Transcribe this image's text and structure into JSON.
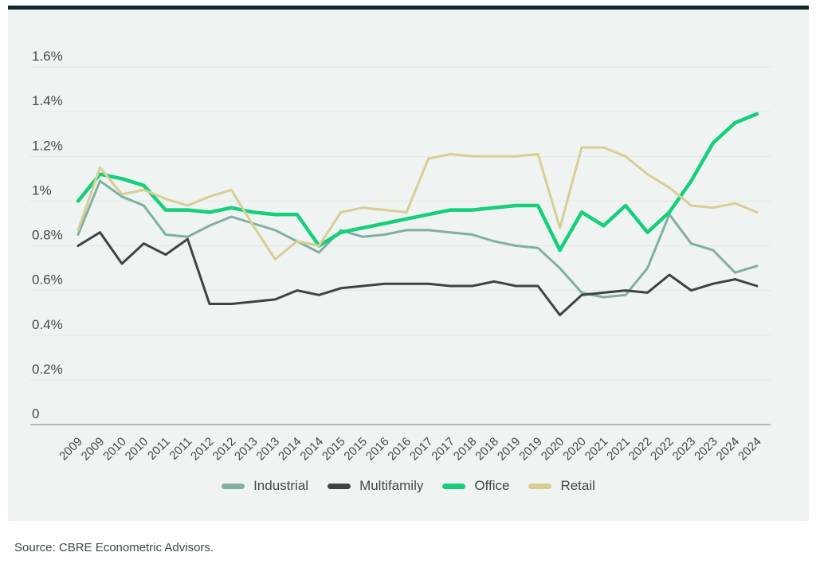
{
  "page": {
    "background": "#ffffff"
  },
  "card": {
    "background": "#eff3f1",
    "top_bar_color": "#0d2b2a"
  },
  "source_note": "Source: CBRE Econometric Advisors.",
  "chart_data": {
    "type": "line",
    "title": "",
    "xlabel": "",
    "ylabel": "",
    "ylim": [
      0,
      1.7
    ],
    "grid": true,
    "legend_position": "bottom",
    "axis_color": "#8e9a97",
    "grid_color": "#e2e8e4",
    "label_color": "#3f4c4e",
    "x": [
      "2009",
      "2009",
      "2010",
      "2010",
      "2011",
      "2011",
      "2012",
      "2012",
      "2013",
      "2013",
      "2014",
      "2014",
      "2015",
      "2015",
      "2016",
      "2016",
      "2017",
      "2017",
      "2018",
      "2018",
      "2019",
      "2019",
      "2020",
      "2020",
      "2021",
      "2021",
      "2022",
      "2022",
      "2023",
      "2023",
      "2024",
      "2024"
    ],
    "y_ticks": [
      {
        "v": 0,
        "label": "0"
      },
      {
        "v": 0.2,
        "label": "0.2%"
      },
      {
        "v": 0.4,
        "label": "0.4%"
      },
      {
        "v": 0.6,
        "label": "0.6%"
      },
      {
        "v": 0.8,
        "label": "0.8%"
      },
      {
        "v": 1.0,
        "label": "1%"
      },
      {
        "v": 1.2,
        "label": "1.2%"
      },
      {
        "v": 1.4,
        "label": "1.4%"
      },
      {
        "v": 1.6,
        "label": "1.6%"
      }
    ],
    "series": [
      {
        "name": "Industrial",
        "color": "#7fb0a1",
        "stroke_width": 3,
        "values": [
          0.85,
          1.09,
          1.02,
          0.98,
          0.85,
          0.84,
          0.89,
          0.93,
          0.9,
          0.87,
          0.82,
          0.77,
          0.87,
          0.84,
          0.85,
          0.87,
          0.87,
          0.86,
          0.85,
          0.82,
          0.8,
          0.79,
          0.7,
          0.59,
          0.57,
          0.58,
          0.7,
          0.94,
          0.81,
          0.78,
          0.68,
          0.71
        ]
      },
      {
        "name": "Multifamily",
        "color": "#3b4547",
        "stroke_width": 3,
        "values": [
          0.8,
          0.86,
          0.72,
          0.81,
          0.76,
          0.83,
          0.54,
          0.54,
          0.55,
          0.56,
          0.6,
          0.58,
          0.61,
          0.62,
          0.63,
          0.63,
          0.63,
          0.62,
          0.62,
          0.64,
          0.62,
          0.62,
          0.49,
          0.58,
          0.59,
          0.6,
          0.59,
          0.67,
          0.6,
          0.63,
          0.65,
          0.62
        ]
      },
      {
        "name": "Office",
        "color": "#15cf7a",
        "stroke_width": 4.5,
        "values": [
          1.0,
          1.12,
          1.1,
          1.07,
          0.96,
          0.96,
          0.95,
          0.97,
          0.95,
          0.94,
          0.94,
          0.8,
          0.86,
          0.88,
          0.9,
          0.92,
          0.94,
          0.96,
          0.96,
          0.97,
          0.98,
          0.98,
          0.78,
          0.95,
          0.89,
          0.98,
          0.86,
          0.95,
          1.09,
          1.26,
          1.35,
          1.39
        ]
      },
      {
        "name": "Retail",
        "color": "#d8ce95",
        "stroke_width": 3,
        "values": [
          0.87,
          1.15,
          1.03,
          1.05,
          1.01,
          0.98,
          1.02,
          1.05,
          0.89,
          0.74,
          0.82,
          0.8,
          0.95,
          0.97,
          0.96,
          0.95,
          1.19,
          1.21,
          1.2,
          1.2,
          1.2,
          1.21,
          0.88,
          1.24,
          1.24,
          1.2,
          1.12,
          1.06,
          0.98,
          0.97,
          0.99,
          0.95
        ]
      }
    ]
  }
}
